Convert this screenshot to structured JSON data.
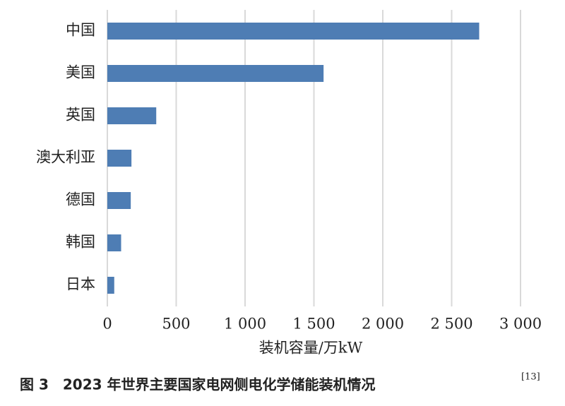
{
  "chart_data": {
    "type": "barh",
    "caption": "图 3　2023 年世界主要国家电网侧电化学储能装机情况",
    "caption_ref": "[13]",
    "x_label": "装机容量/万kW",
    "categories": [
      "中国",
      "美国",
      "英国",
      "澳大利亚",
      "德国",
      "韩国",
      "日本"
    ],
    "values": [
      2700,
      1570,
      355,
      175,
      170,
      100,
      50
    ],
    "color": "#4e7db4",
    "xlim": [
      0,
      3000
    ],
    "xticks": [
      0,
      500,
      {
        "value": 1000,
        "label": "1 000"
      },
      {
        "value": 1500,
        "label": "1 500"
      },
      {
        "value": 2000,
        "label": "2 000"
      },
      {
        "value": 2500,
        "label": "2 500"
      },
      {
        "value": 3000,
        "label": "3 000"
      }
    ],
    "grid": true
  }
}
